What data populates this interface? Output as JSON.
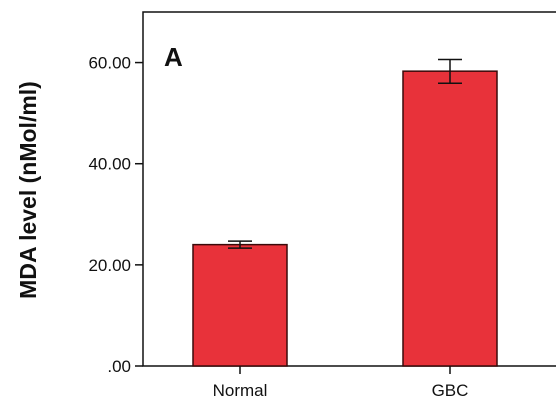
{
  "chart_data": {
    "type": "bar",
    "panel_label": "A",
    "ylabel": "MDA level (nMol/ml)",
    "xlabel": "",
    "categories": [
      "Normal",
      "GBC"
    ],
    "values": [
      24.0,
      58.3
    ],
    "error_bars": [
      {
        "low": 23.3,
        "high": 24.7
      },
      {
        "low": 55.9,
        "high": 60.6
      }
    ],
    "ylim": [
      0,
      70
    ],
    "yticks": [
      0,
      20,
      40,
      60
    ],
    "ytick_labels": [
      ".00",
      "20.00",
      "40.00",
      "60.00"
    ],
    "grid": false,
    "bar_color": "#e8323a",
    "bar_edge_color": "#3a0a0a"
  }
}
